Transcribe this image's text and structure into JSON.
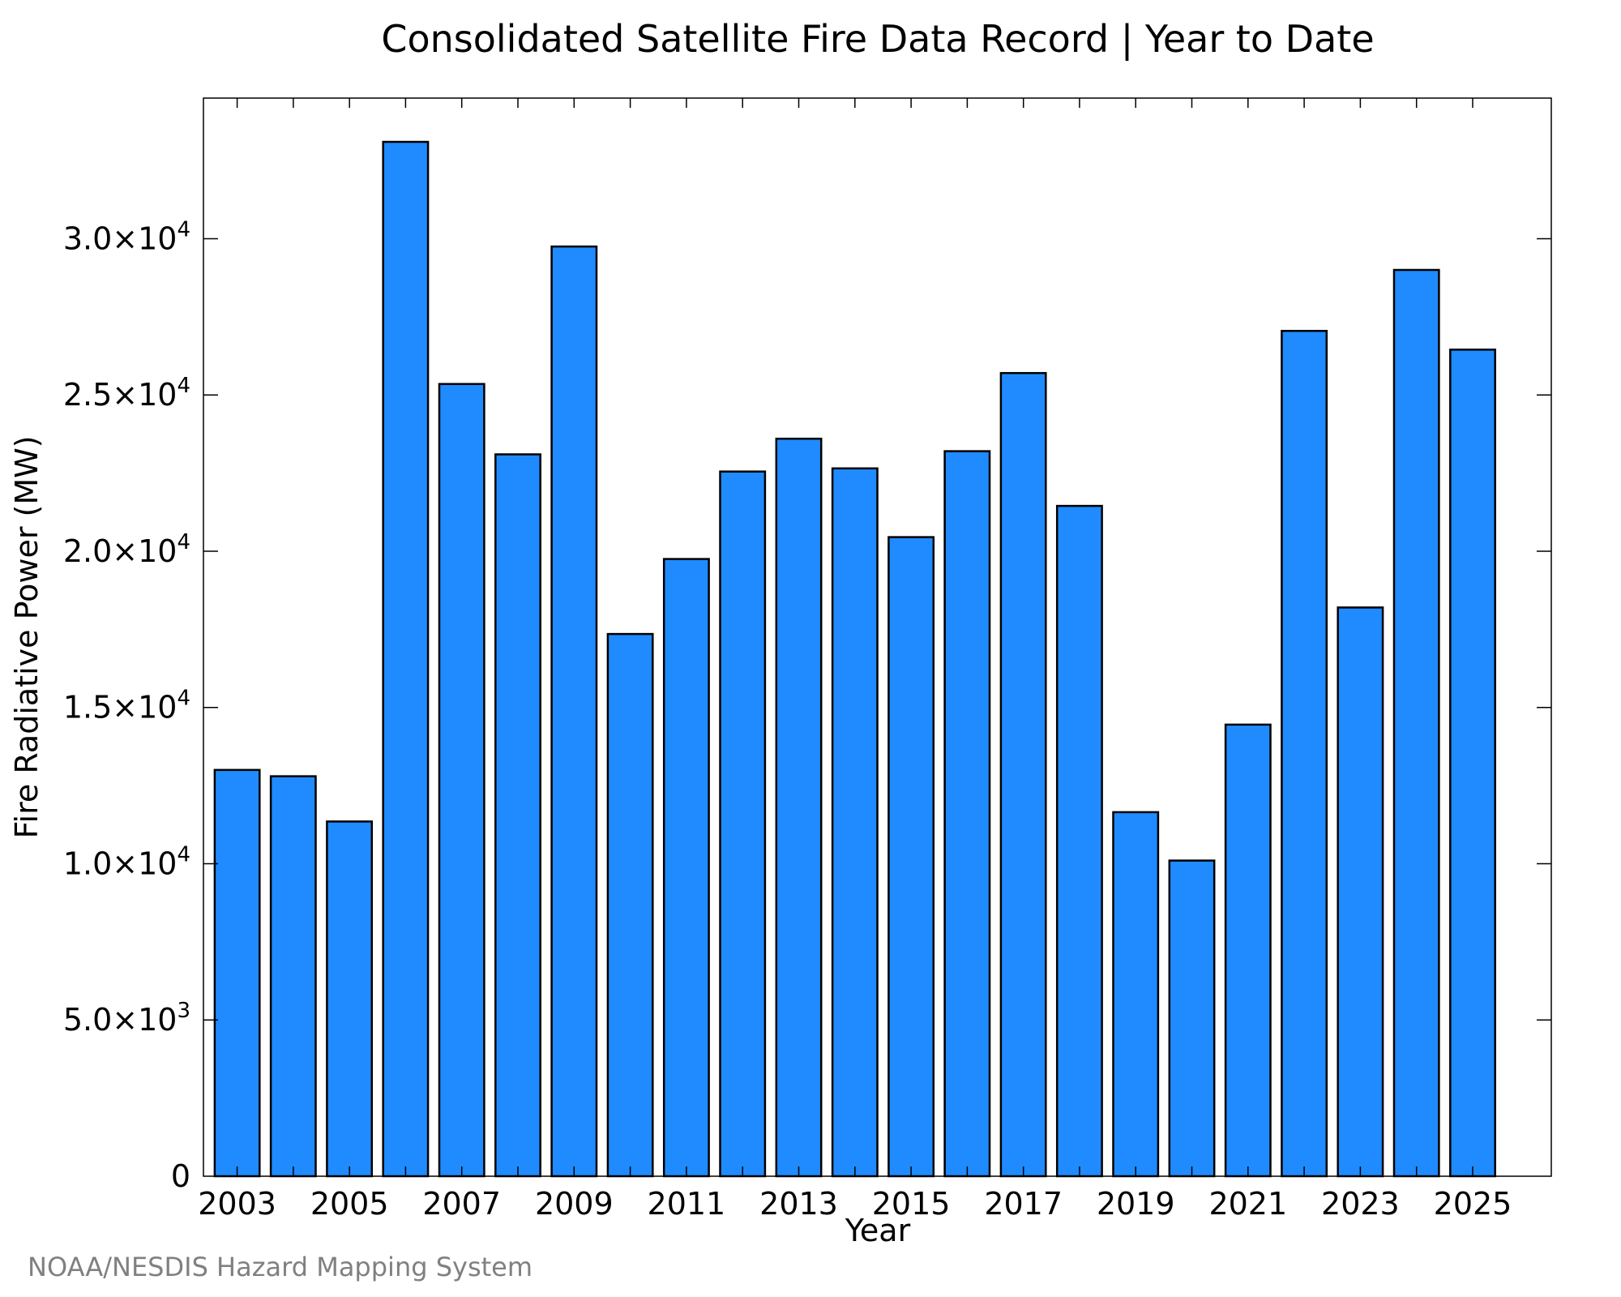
{
  "chart_data": {
    "type": "bar",
    "title": "Consolidated Satellite Fire Data Record | Year to Date",
    "xlabel": "Year",
    "ylabel": "Fire Radiative Power (MW)",
    "categories": [
      "2003",
      "2004",
      "2005",
      "2006",
      "2007",
      "2008",
      "2009",
      "2010",
      "2011",
      "2012",
      "2013",
      "2014",
      "2015",
      "2016",
      "2017",
      "2018",
      "2019",
      "2020",
      "2021",
      "2022",
      "2023",
      "2024",
      "2025"
    ],
    "values": [
      13000,
      12800,
      11350,
      33100,
      25350,
      23100,
      29750,
      17350,
      19750,
      22550,
      23600,
      22650,
      20450,
      23200,
      25700,
      21450,
      11650,
      10100,
      14450,
      27050,
      18200,
      29000,
      26450
    ],
    "x_tick_labels": [
      "2003",
      "2005",
      "2007",
      "2009",
      "2011",
      "2013",
      "2015",
      "2017",
      "2019",
      "2021",
      "2023",
      "2025"
    ],
    "y_ticks": [
      {
        "value": 0,
        "mantissa": "0",
        "exponent": ""
      },
      {
        "value": 5000,
        "mantissa": "5.0×10",
        "exponent": "3"
      },
      {
        "value": 10000,
        "mantissa": "1.0×10",
        "exponent": "4"
      },
      {
        "value": 15000,
        "mantissa": "1.5×10",
        "exponent": "4"
      },
      {
        "value": 20000,
        "mantissa": "2.0×10",
        "exponent": "4"
      },
      {
        "value": 25000,
        "mantissa": "2.5×10",
        "exponent": "4"
      },
      {
        "value": 30000,
        "mantissa": "3.0×10",
        "exponent": "4"
      }
    ],
    "ylim": [
      0,
      34500
    ],
    "xlim": [
      2002.4,
      2026.4
    ],
    "grid": false,
    "legend": "none",
    "bar_color": "#1f8bff",
    "bar_edge_color": "#000000"
  },
  "credit": "NOAA/NESDIS Hazard Mapping System"
}
